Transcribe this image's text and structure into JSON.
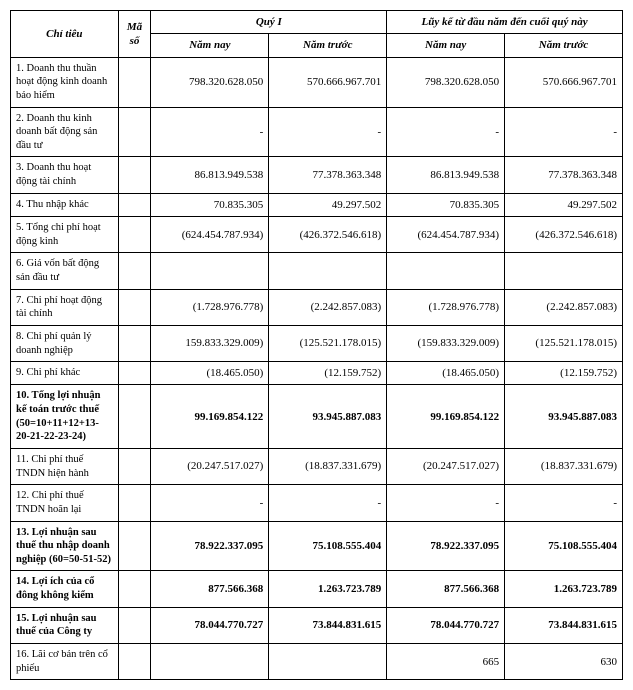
{
  "headers": {
    "chitieu": "Chỉ tiêu",
    "maso": "Mã số",
    "quy1": "Quý I",
    "luyke": "Lũy kế từ đầu năm đến cuối quý này",
    "namnay": "Năm nay",
    "namtruoc": "Năm trước"
  },
  "rows": [
    {
      "label": "1. Doanh thu thuần hoạt động kinh doanh bảo hiểm",
      "bold": false,
      "q_nay": "798.320.628.050",
      "q_truoc": "570.666.967.701",
      "l_nay": "798.320.628.050",
      "l_truoc": "570.666.967.701"
    },
    {
      "label": "2. Doanh thu kinh doanh bất động sản đầu tư",
      "bold": false,
      "q_nay": "-",
      "q_truoc": "-",
      "l_nay": "-",
      "l_truoc": "-"
    },
    {
      "label": "3. Doanh thu hoạt động tài chính",
      "bold": false,
      "q_nay": "86.813.949.538",
      "q_truoc": "77.378.363.348",
      "l_nay": "86.813.949.538",
      "l_truoc": "77.378.363.348"
    },
    {
      "label": "4. Thu nhập khác",
      "bold": false,
      "q_nay": "70.835.305",
      "q_truoc": "49.297.502",
      "l_nay": "70.835.305",
      "l_truoc": "49.297.502"
    },
    {
      "label": "5. Tổng chi phí hoạt động kinh",
      "bold": false,
      "q_nay": "(624.454.787.934)",
      "q_truoc": "(426.372.546.618)",
      "l_nay": "(624.454.787.934)",
      "l_truoc": "(426.372.546.618)"
    },
    {
      "label": "6. Giá vốn bất động sản đầu tư",
      "bold": false,
      "q_nay": "",
      "q_truoc": "",
      "l_nay": "",
      "l_truoc": ""
    },
    {
      "label": "7. Chi phí hoạt động tài chính",
      "bold": false,
      "q_nay": "(1.728.976.778)",
      "q_truoc": "(2.242.857.083)",
      "l_nay": "(1.728.976.778)",
      "l_truoc": "(2.242.857.083)"
    },
    {
      "label": "8. Chi phí quản lý doanh nghiệp",
      "bold": false,
      "q_nay": "159.833.329.009)",
      "q_truoc": "(125.521.178.015)",
      "l_nay": "(159.833.329.009)",
      "l_truoc": "(125.521.178.015)"
    },
    {
      "label": "9. Chi phí khác",
      "bold": false,
      "q_nay": "(18.465.050)",
      "q_truoc": "(12.159.752)",
      "l_nay": "(18.465.050)",
      "l_truoc": "(12.159.752)"
    },
    {
      "label": "10. Tổng lợi nhuận kế toán trước thuế (50=10+11+12+13-20-21-22-23-24)",
      "bold": true,
      "q_nay": "99.169.854.122",
      "q_truoc": "93.945.887.083",
      "l_nay": "99.169.854.122",
      "l_truoc": "93.945.887.083"
    },
    {
      "label": "11. Chi phí thuế TNDN hiện hành",
      "bold": false,
      "q_nay": "(20.247.517.027)",
      "q_truoc": "(18.837.331.679)",
      "l_nay": "(20.247.517.027)",
      "l_truoc": "(18.837.331.679)"
    },
    {
      "label": "12. Chi phí thuế TNDN hoãn lại",
      "bold": false,
      "q_nay": "-",
      "q_truoc": "-",
      "l_nay": "-",
      "l_truoc": "-"
    },
    {
      "label": "13. Lợi nhuận sau thuế thu nhập doanh nghiệp (60=50-51-52)",
      "bold": true,
      "q_nay": "78.922.337.095",
      "q_truoc": "75.108.555.404",
      "l_nay": "78.922.337.095",
      "l_truoc": "75.108.555.404"
    },
    {
      "label": "14. Lợi ích của cổ đông không kiểm",
      "bold": true,
      "q_nay": "877.566.368",
      "q_truoc": "1.263.723.789",
      "l_nay": "877.566.368",
      "l_truoc": "1.263.723.789"
    },
    {
      "label": "15. Lợi nhuận sau thuế của Công ty",
      "bold": true,
      "q_nay": "78.044.770.727",
      "q_truoc": "73.844.831.615",
      "l_nay": "78.044.770.727",
      "l_truoc": "73.844.831.615"
    },
    {
      "label": "16. Lãi cơ bản trên cổ phiếu",
      "bold": false,
      "q_nay": "",
      "q_truoc": "",
      "l_nay": "665",
      "l_truoc": "630"
    }
  ]
}
